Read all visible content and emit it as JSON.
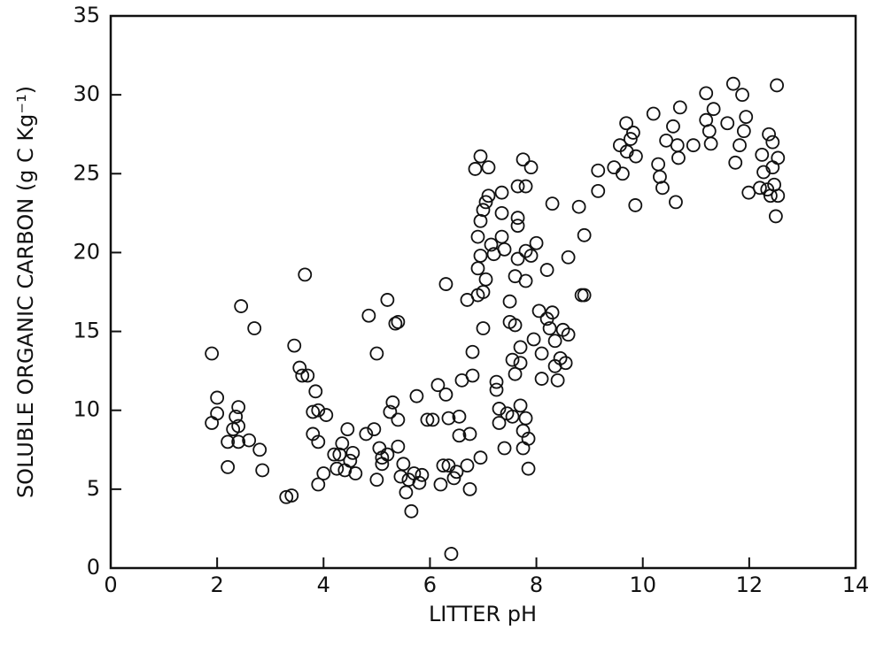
{
  "chart_data": {
    "type": "scatter",
    "xlabel": "LITTER pH",
    "ylabel": "SOLUBLE ORGANIC CARBON (g C Kg⁻¹)",
    "xlim": [
      0,
      14
    ],
    "xticks": [
      0,
      2,
      4,
      6,
      8,
      10,
      12,
      14
    ],
    "ylim": [
      0,
      35
    ],
    "yticks": [
      0,
      5,
      10,
      15,
      20,
      25,
      30,
      35
    ],
    "series": [
      {
        "color": "#111111",
        "x": [
          1.9,
          1.9,
          2.0,
          2.0,
          2.2,
          2.2,
          2.3,
          2.35,
          2.4,
          2.4,
          2.4,
          2.45,
          2.6,
          2.7,
          2.8,
          2.85,
          3.3,
          3.4,
          3.45,
          3.55,
          3.6,
          3.65,
          3.7,
          3.8,
          3.8,
          3.85,
          3.9,
          3.9,
          3.9,
          4.0,
          4.05,
          4.2,
          4.25,
          4.3,
          4.35,
          4.4,
          4.45,
          4.5,
          4.55,
          4.6,
          4.8,
          4.85,
          4.95,
          5.0,
          5.0,
          5.05,
          5.1,
          5.1,
          5.2,
          5.2,
          5.25,
          5.3,
          5.35,
          5.4,
          5.4,
          5.4,
          5.45,
          5.5,
          5.55,
          5.6,
          5.65,
          5.7,
          5.75,
          5.8,
          5.85,
          5.95,
          6.05,
          6.15,
          6.2,
          6.25,
          6.3,
          6.3,
          6.35,
          6.35,
          6.4,
          6.45,
          6.5,
          6.55,
          6.55,
          6.6,
          6.7,
          6.7,
          6.75,
          6.75,
          6.8,
          6.8,
          6.85,
          6.9,
          6.9,
          6.9,
          6.95,
          6.95,
          6.95,
          6.95,
          7.0,
          7.0,
          7.0,
          7.05,
          7.05,
          7.1,
          7.1,
          7.15,
          7.2,
          7.25,
          7.25,
          7.3,
          7.3,
          7.35,
          7.35,
          7.35,
          7.4,
          7.4,
          7.45,
          7.5,
          7.5,
          7.55,
          7.55,
          7.6,
          7.6,
          7.6,
          7.65,
          7.65,
          7.65,
          7.65,
          7.7,
          7.7,
          7.7,
          7.75,
          7.75,
          7.75,
          7.8,
          7.8,
          7.8,
          7.8,
          7.85,
          7.85,
          7.9,
          7.9,
          7.95,
          8.0,
          8.05,
          8.1,
          8.1,
          8.2,
          8.2,
          8.25,
          8.3,
          8.3,
          8.35,
          8.35,
          8.4,
          8.45,
          8.5,
          8.55,
          8.6,
          8.6,
          8.8,
          8.85,
          8.9,
          8.9,
          9.16,
          9.16,
          9.46,
          9.57,
          9.62,
          9.69,
          9.7,
          9.77,
          9.82,
          9.86,
          9.87,
          10.2,
          10.29,
          10.32,
          10.37,
          10.44,
          10.57,
          10.62,
          10.65,
          10.67,
          10.7,
          10.95,
          11.19,
          11.19,
          11.25,
          11.28,
          11.33,
          11.59,
          11.7,
          11.74,
          11.82,
          11.87,
          11.9,
          11.94,
          11.99,
          12.2,
          12.24,
          12.27,
          12.34,
          12.37,
          12.4,
          12.44,
          12.44,
          12.47,
          12.5,
          12.52,
          12.54,
          12.54
        ],
        "values": [
          13.6,
          9.2,
          9.8,
          10.8,
          8.0,
          6.4,
          8.8,
          9.6,
          10.2,
          9.0,
          8.0,
          16.6,
          8.1,
          15.2,
          7.5,
          6.2,
          4.5,
          4.6,
          14.1,
          12.7,
          12.2,
          18.6,
          12.2,
          8.5,
          9.9,
          11.2,
          8.0,
          10.0,
          5.3,
          6.0,
          9.7,
          7.2,
          6.3,
          7.2,
          7.9,
          6.2,
          8.8,
          6.8,
          7.3,
          6.0,
          8.5,
          16.0,
          8.8,
          13.6,
          5.6,
          7.6,
          7.0,
          6.6,
          17.0,
          7.2,
          9.9,
          10.5,
          15.5,
          15.6,
          9.4,
          7.7,
          5.8,
          6.6,
          4.8,
          5.6,
          3.6,
          6.0,
          10.9,
          5.4,
          5.9,
          9.4,
          9.4,
          11.6,
          5.3,
          6.5,
          18.0,
          11.0,
          9.5,
          6.5,
          0.9,
          5.7,
          6.1,
          9.6,
          8.4,
          11.9,
          17.0,
          6.5,
          5.0,
          8.5,
          12.2,
          13.7,
          25.3,
          17.3,
          19.0,
          21.0,
          26.1,
          22.0,
          19.8,
          7.0,
          15.2,
          17.5,
          22.7,
          18.3,
          23.2,
          25.4,
          23.6,
          20.5,
          19.9,
          11.8,
          11.3,
          10.1,
          9.2,
          23.8,
          22.5,
          21.0,
          20.2,
          7.6,
          9.8,
          16.9,
          15.6,
          13.2,
          9.6,
          15.4,
          12.3,
          18.5,
          21.7,
          22.2,
          24.2,
          19.6,
          14.0,
          13.0,
          10.3,
          8.7,
          7.6,
          25.9,
          24.2,
          20.1,
          18.2,
          9.5,
          6.3,
          8.2,
          25.4,
          19.8,
          14.5,
          20.6,
          16.3,
          13.6,
          12.0,
          15.8,
          18.9,
          15.2,
          23.1,
          16.2,
          14.4,
          12.8,
          11.9,
          13.3,
          15.1,
          13.0,
          14.8,
          19.7,
          22.9,
          17.3,
          17.3,
          21.1,
          25.2,
          23.9,
          25.4,
          26.8,
          25.0,
          28.2,
          26.4,
          27.2,
          27.6,
          23.0,
          26.1,
          28.8,
          25.6,
          24.8,
          24.1,
          27.1,
          28.0,
          23.2,
          26.8,
          26.0,
          29.2,
          26.8,
          30.1,
          28.4,
          27.7,
          26.9,
          29.1,
          28.2,
          30.7,
          25.7,
          26.8,
          30.0,
          27.7,
          28.6,
          23.8,
          24.1,
          26.2,
          25.1,
          24.0,
          27.5,
          23.6,
          27.0,
          25.4,
          24.3,
          22.3,
          30.6,
          26.0,
          23.6
        ]
      }
    ]
  }
}
